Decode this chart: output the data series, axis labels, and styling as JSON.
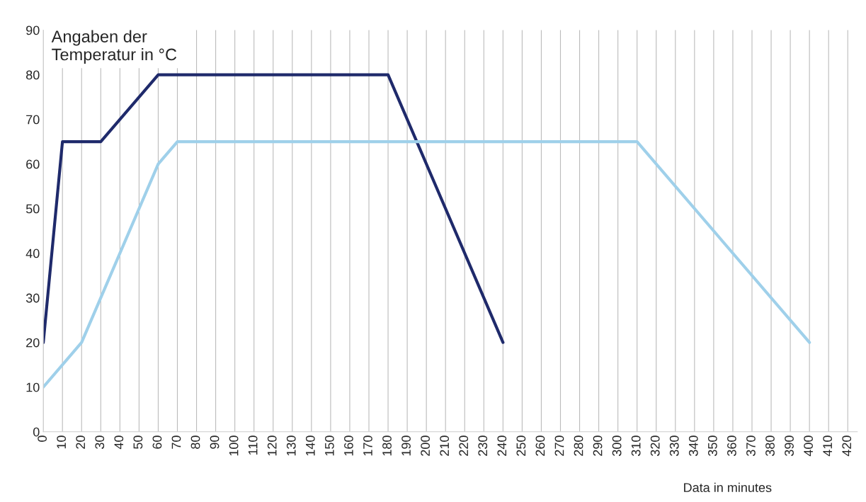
{
  "chart_data": {
    "type": "line",
    "ylabel": "Angaben der\nTemperatur in °C",
    "xlabel": "Data in minutes",
    "series": [
      {
        "color": "#1f2a6b",
        "x": [
          0,
          10,
          30,
          60,
          180,
          240
        ],
        "values": [
          20,
          65,
          65,
          80,
          80,
          20
        ]
      },
      {
        "color": "#9fd0ea",
        "x": [
          0,
          20,
          60,
          70,
          310,
          400
        ],
        "values": [
          10,
          20,
          60,
          65,
          65,
          20
        ]
      }
    ],
    "xlim": [
      0,
      425
    ],
    "xticks": [
      0,
      10,
      20,
      30,
      40,
      50,
      60,
      70,
      80,
      90,
      100,
      110,
      120,
      130,
      140,
      150,
      160,
      170,
      180,
      190,
      200,
      210,
      220,
      230,
      240,
      250,
      260,
      270,
      280,
      290,
      300,
      310,
      320,
      330,
      340,
      350,
      360,
      370,
      380,
      390,
      400,
      410,
      420
    ],
    "ylim": [
      0,
      90
    ],
    "yticks": [
      0,
      10,
      20,
      30,
      40,
      50,
      60,
      70,
      80,
      90
    ],
    "grid": "x",
    "marker": "none",
    "line_style": "solid",
    "legend": false
  }
}
